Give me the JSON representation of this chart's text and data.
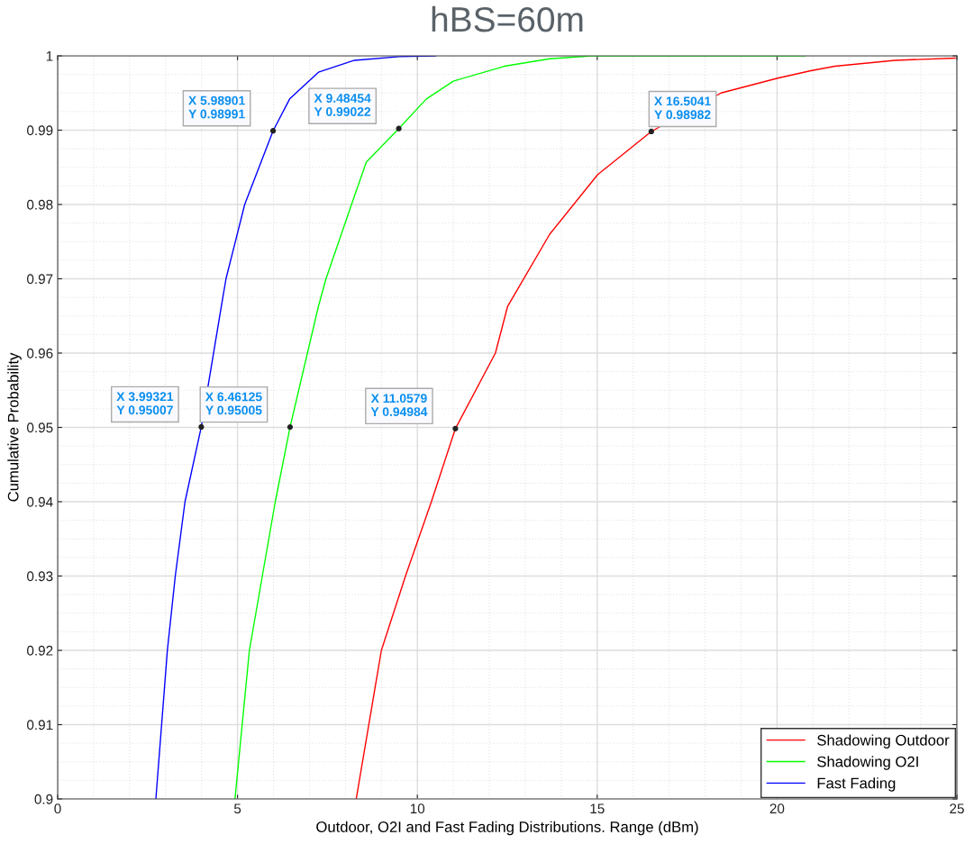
{
  "chart_data": {
    "type": "line",
    "title": "hBS=60m",
    "xlabel": "Outdoor, O2I and Fast Fading Distributions. Range (dBm)",
    "ylabel": "Cumulative Probability",
    "xlim": [
      0,
      25
    ],
    "xticks": [
      0,
      5,
      10,
      15,
      20,
      25
    ],
    "ylim": [
      0.9,
      1
    ],
    "yticks": [
      0.9,
      0.91,
      0.92,
      0.93,
      0.94,
      0.95,
      0.96,
      0.97,
      0.98,
      0.99,
      1
    ],
    "grid": true,
    "legend": "bottom right",
    "line_style": "solid",
    "marker": "none",
    "series": [
      {
        "name": "Shadowing Outdoor",
        "color": "#ff0000",
        "x": [
          8.3,
          9.0,
          9.67,
          10.39,
          11.0579,
          12.17,
          12.51,
          13.68,
          15.01,
          16.5041,
          18.44,
          20.02,
          20.94,
          21.61,
          23.28,
          24.95
        ],
        "values": [
          0.9,
          0.92,
          0.93,
          0.94,
          0.94984,
          0.96,
          0.9663,
          0.976,
          0.984,
          0.98982,
          0.995,
          0.997,
          0.998,
          0.9986,
          0.9994,
          0.9997
        ]
      },
      {
        "name": "Shadowing O2I",
        "color": "#00ff00",
        "x": [
          4.93,
          5.33,
          5.69,
          6.05,
          6.46125,
          7.25,
          7.46,
          8.17,
          8.58,
          9.48454,
          10.25,
          11.0,
          12.42,
          13.68,
          14.85,
          20.77
        ],
        "values": [
          0.9,
          0.92,
          0.93,
          0.94,
          0.95005,
          0.9663,
          0.97,
          0.98,
          0.9857,
          0.99022,
          0.9942,
          0.9966,
          0.9986,
          0.9996,
          1,
          1
        ]
      },
      {
        "name": "Fast Fading",
        "color": "#0000ff",
        "x": [
          2.73,
          3.05,
          3.27,
          3.54,
          3.99321,
          4.55,
          4.68,
          5.2,
          5.98901,
          6.45,
          7.25,
          8.25,
          9.5,
          10.5
        ],
        "values": [
          0.9,
          0.92,
          0.93,
          0.94,
          0.95007,
          0.9663,
          0.97,
          0.98,
          0.98991,
          0.9942,
          0.9978,
          0.9994,
          0.9999,
          1
        ]
      }
    ],
    "annotations": [
      {
        "text": "X 5.98901\nY 0.98991",
        "x": 5.98901,
        "y": 0.98991
      },
      {
        "text": "X 9.48454\nY 0.99022",
        "x": 9.48454,
        "y": 0.99022
      },
      {
        "text": "X 16.5041\nY 0.98982",
        "x": 16.5041,
        "y": 0.98982
      },
      {
        "text": "X 3.99321\nY 0.95007",
        "x": 3.99321,
        "y": 0.95007
      },
      {
        "text": "X 6.46125\nY 0.95005",
        "x": 6.46125,
        "y": 0.95005
      },
      {
        "text": "X 11.0579\nY 0.94984",
        "x": 11.0579,
        "y": 0.94984
      }
    ]
  }
}
